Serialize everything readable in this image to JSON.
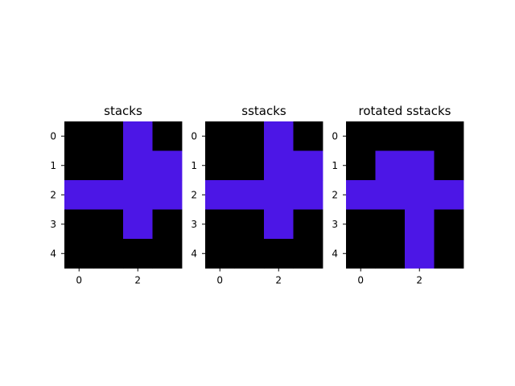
{
  "chart_data": [
    {
      "type": "heatmap",
      "title": "stacks",
      "grid": [
        [
          0,
          0,
          1,
          0
        ],
        [
          0,
          0,
          1,
          1
        ],
        [
          1,
          1,
          1,
          1
        ],
        [
          0,
          0,
          1,
          0
        ],
        [
          0,
          0,
          0,
          0
        ]
      ],
      "xticks": [
        0,
        2
      ],
      "yticks": [
        0,
        1,
        2,
        3,
        4
      ],
      "colors": {
        "on": "#4c16e6",
        "off": "#000000"
      }
    },
    {
      "type": "heatmap",
      "title": "sstacks",
      "grid": [
        [
          0,
          0,
          1,
          0
        ],
        [
          0,
          0,
          1,
          1
        ],
        [
          1,
          1,
          1,
          1
        ],
        [
          0,
          0,
          1,
          0
        ],
        [
          0,
          0,
          0,
          0
        ]
      ],
      "xticks": [
        0,
        2
      ],
      "yticks": [
        0,
        1,
        2,
        3,
        4
      ],
      "colors": {
        "on": "#4c16e6",
        "off": "#000000"
      }
    },
    {
      "type": "heatmap",
      "title": "rotated sstacks",
      "grid": [
        [
          0,
          0,
          0,
          0
        ],
        [
          0,
          1,
          1,
          0
        ],
        [
          1,
          1,
          1,
          1
        ],
        [
          0,
          0,
          1,
          0
        ],
        [
          0,
          0,
          1,
          0
        ]
      ],
      "xticks": [
        0,
        2
      ],
      "yticks": [
        0,
        1,
        2,
        3,
        4
      ],
      "colors": {
        "on": "#4c16e6",
        "off": "#000000"
      }
    }
  ]
}
